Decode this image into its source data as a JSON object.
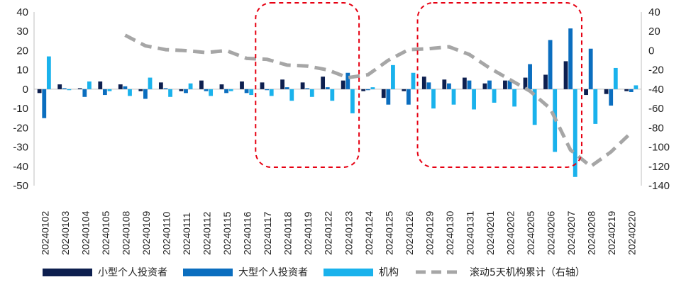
{
  "chart_data": {
    "type": "bar",
    "categories": [
      "20240102",
      "20240103",
      "20240104",
      "20240105",
      "20240108",
      "20240109",
      "20240110",
      "20240111",
      "20240112",
      "20240115",
      "20240116",
      "20240117",
      "20240118",
      "20240119",
      "20240122",
      "20240123",
      "20240124",
      "20240125",
      "20240126",
      "20240129",
      "20240130",
      "20240131",
      "20240201",
      "20240202",
      "20240205",
      "20240206",
      "20240207",
      "20240208",
      "20240219",
      "20240220"
    ],
    "series": [
      {
        "name": "小型个人投资者",
        "color": "#0d1f4f",
        "axis": "left",
        "values": [
          -2,
          2.5,
          0.5,
          4,
          2.5,
          -1,
          3.5,
          -1,
          4.5,
          2.5,
          4,
          3.5,
          5,
          3.5,
          6.5,
          4.5,
          -1,
          -4.5,
          -1,
          6.5,
          5,
          6,
          3,
          4.5,
          6,
          7.5,
          14.5,
          -3,
          -2.5,
          -1
        ]
      },
      {
        "name": "大型个人投资者",
        "color": "#0b6ebf",
        "axis": "left",
        "values": [
          -15,
          0.5,
          -4,
          -3,
          1.5,
          -5,
          0.5,
          -2,
          -1,
          -2,
          -2,
          -0.5,
          1,
          0.5,
          1,
          8.5,
          -0.5,
          -8,
          -8,
          3.5,
          3,
          4.5,
          4.5,
          4.5,
          13,
          25.5,
          31.5,
          21,
          -8.5,
          -1.5
        ]
      },
      {
        "name": "机构",
        "color": "#1ab2ec",
        "axis": "left",
        "values": [
          17,
          -0.5,
          4,
          -1,
          -3.5,
          6,
          -4,
          3,
          -3.5,
          -1,
          -3,
          -3.5,
          -6,
          -4,
          -6,
          -12.5,
          1,
          12.5,
          8.5,
          -10,
          -8,
          -10.5,
          -7,
          -9,
          -18.5,
          -32.5,
          -45.5,
          -18,
          11,
          2
        ]
      },
      {
        "name": "滚动5天机构累计（右轴）",
        "color": "#a6a6a6",
        "axis": "right",
        "style": "dashed",
        "values": [
          null,
          null,
          null,
          null,
          16,
          5,
          1,
          0,
          -2,
          0,
          -8,
          -9,
          -15,
          -16,
          -20,
          -28,
          -25,
          -10,
          1,
          2,
          4,
          -4,
          -18,
          -30,
          -42,
          -60,
          -103,
          -120,
          -105,
          -85
        ]
      }
    ],
    "left_axis": {
      "ticks": [
        "40",
        "30",
        "20",
        "10",
        "0",
        "-10",
        "-20",
        "-30",
        "-40",
        "-50"
      ],
      "ylim": [
        -50,
        40
      ]
    },
    "right_axis": {
      "ticks": [
        "40",
        "20",
        "0",
        "-20",
        "-40",
        "-60",
        "-80",
        "-100",
        "-120",
        "-140"
      ],
      "ylim": [
        -140,
        40
      ]
    },
    "highlight_regions": [
      {
        "from": "20240117",
        "to": "20240123",
        "color": "#e60012",
        "style": "dashed"
      },
      {
        "from": "20240129",
        "to": "20240207",
        "color": "#e60012",
        "style": "dashed"
      }
    ],
    "legend_position": "bottom",
    "grid": false
  },
  "legend": [
    {
      "label": "小型个人投资者",
      "color": "#0d1f4f",
      "kind": "bar"
    },
    {
      "label": "大型个人投资者",
      "color": "#0b6ebf",
      "kind": "bar"
    },
    {
      "label": "机构",
      "color": "#1ab2ec",
      "kind": "bar"
    },
    {
      "label": "滚动5天机构累计（右轴）",
      "color": "#a6a6a6",
      "kind": "dashed-line"
    }
  ]
}
